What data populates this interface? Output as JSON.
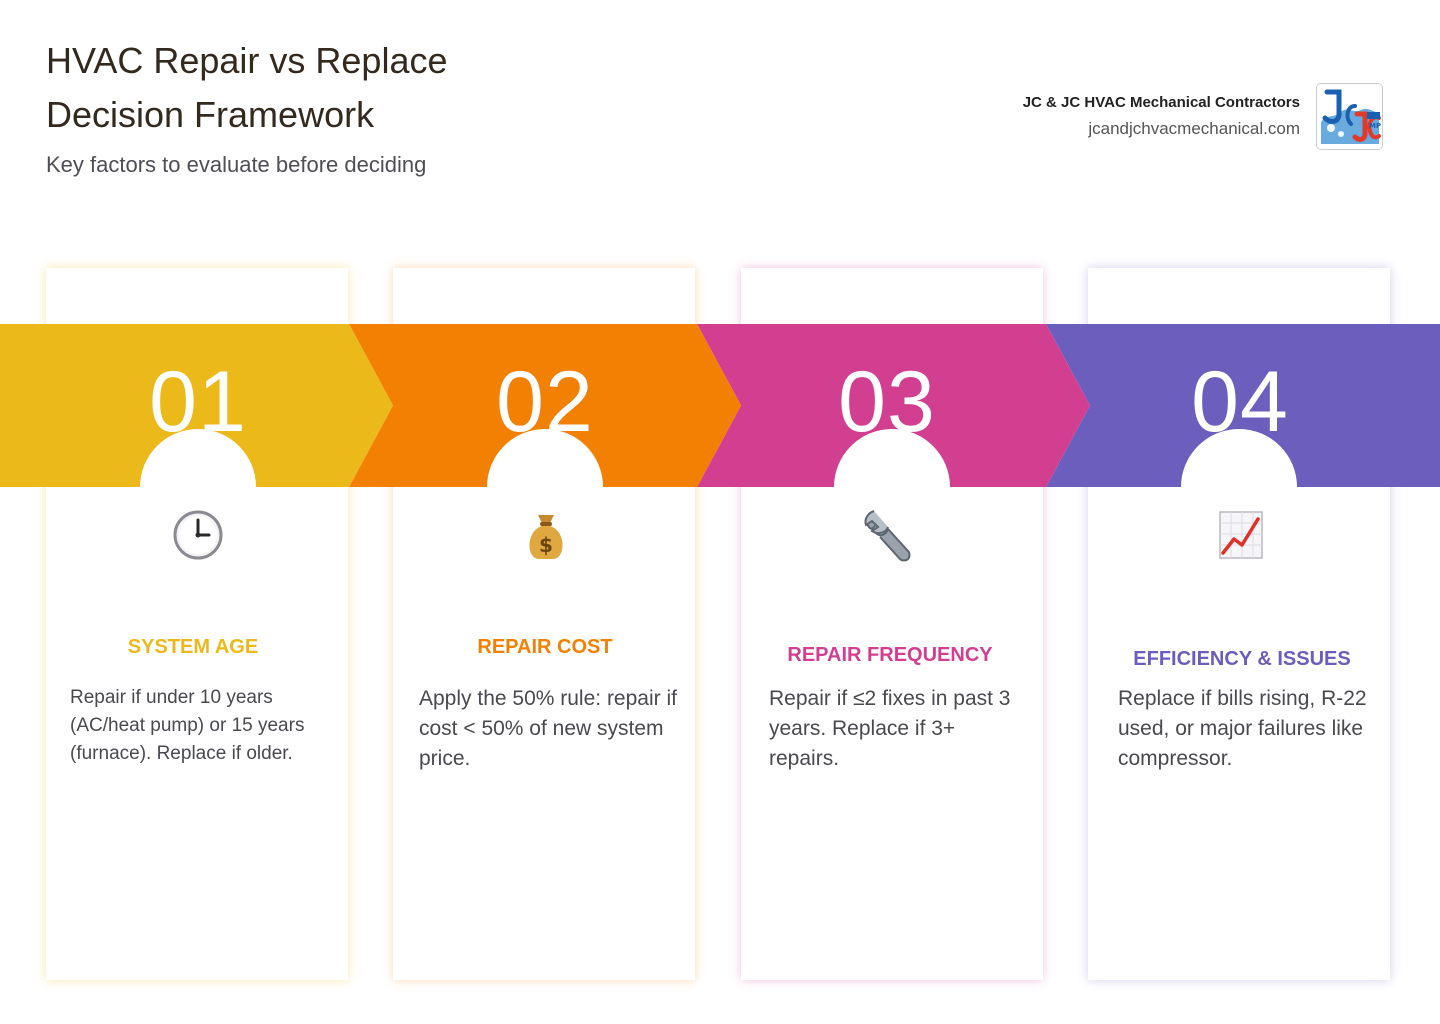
{
  "header": {
    "title_line1": "HVAC Repair vs Replace",
    "title_line2": "Decision Framework",
    "subtitle": "Key factors to evaluate before deciding"
  },
  "brand": {
    "name": "JC & JC HVAC Mechanical Contractors",
    "url": "jcandjchvacmechanical.com",
    "logo_icon": "jc-logo-icon"
  },
  "colors": {
    "step1": "#ECB91A",
    "step2": "#F28003",
    "step3": "#D23F91",
    "step4": "#6C5EBD"
  },
  "steps": [
    {
      "number": "01",
      "icon": "clock-icon",
      "title": "SYSTEM AGE",
      "description": "Repair if under 10 years (AC/heat pump) or 15 years (furnace). Replace if older."
    },
    {
      "number": "02",
      "icon": "money-bag-icon",
      "title": "REPAIR COST",
      "description": "Apply the 50% rule: repair if cost < 50% of new system price."
    },
    {
      "number": "03",
      "icon": "wrench-icon",
      "title": "REPAIR FREQUENCY",
      "description": "Repair if ≤2 fixes in past 3 years. Replace if 3+ repairs."
    },
    {
      "number": "04",
      "icon": "chart-increasing-icon",
      "title": "EFFICIENCY & ISSUES",
      "description": "Replace if bills rising, R-22 used, or major failures like compressor."
    }
  ]
}
